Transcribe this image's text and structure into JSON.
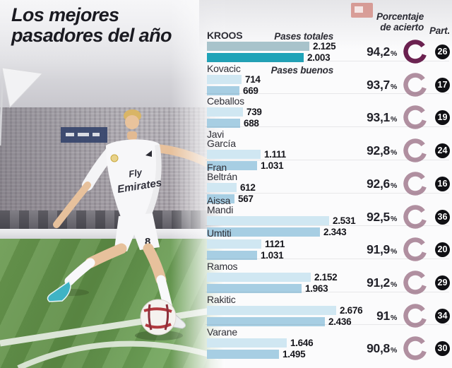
{
  "title": {
    "line1": "Los mejores",
    "line2": "pasadores del año"
  },
  "columns": {
    "pct_header_line1": "Porcentaje",
    "pct_header_line2": "de acierto",
    "part_header": "Part."
  },
  "legend": {
    "total": "Pases totales",
    "good": "Pases buenos"
  },
  "photo": {
    "sponsor_line1": "Fly",
    "sponsor_line2": "Emirates",
    "shirt_number": "8"
  },
  "colors": {
    "bar_total": "#d0e7f2",
    "bar_good": "#a7cee3",
    "bar_total_highlight": "#a8c3cb",
    "bar_good_highlight": "#1fa3b8",
    "ring": "#b08fa0",
    "ring_highlight": "#6b2150",
    "badge_bg": "#101014",
    "badge_text": "#ffffff"
  },
  "chart_data": {
    "type": "bar",
    "orientation": "horizontal",
    "title": "Los mejores pasadores del año",
    "series_labels": [
      "Pases totales",
      "Pases buenos"
    ],
    "pct_unit": "%",
    "max_value": 2676,
    "players": [
      {
        "name_lines": [
          "KROOS"
        ],
        "total_value": 2125,
        "total_label": "2.125",
        "good_value": 2003,
        "good_label": "2.003",
        "pct_value": 94.2,
        "pct_label": "94,2",
        "part": "26",
        "highlight": true
      },
      {
        "name_lines": [
          "Kovacic"
        ],
        "total_value": 714,
        "total_label": "714",
        "good_value": 669,
        "good_label": "669",
        "pct_value": 93.7,
        "pct_label": "93,7",
        "part": "17",
        "highlight": false
      },
      {
        "name_lines": [
          "Ceballos"
        ],
        "total_value": 739,
        "total_label": "739",
        "good_value": 688,
        "good_label": "688",
        "pct_value": 93.1,
        "pct_label": "93,1",
        "part": "19",
        "highlight": false
      },
      {
        "name_lines": [
          "Javi",
          "García"
        ],
        "total_value": 1111,
        "total_label": "1.111",
        "good_value": 1031,
        "good_label": "1.031",
        "pct_value": 92.8,
        "pct_label": "92,8",
        "part": "24",
        "highlight": false
      },
      {
        "name_lines": [
          "Fran",
          "Beltrán"
        ],
        "total_value": 612,
        "total_label": "612",
        "good_value": 567,
        "good_label": "567",
        "pct_value": 92.6,
        "pct_label": "92,6",
        "part": "16",
        "highlight": false
      },
      {
        "name_lines": [
          "Aissa",
          "Mandi"
        ],
        "total_value": 2531,
        "total_label": "2.531",
        "good_value": 2343,
        "good_label": "2.343",
        "pct_value": 92.5,
        "pct_label": "92,5",
        "part": "36",
        "highlight": false
      },
      {
        "name_lines": [
          "Umtiti"
        ],
        "total_value": 1121,
        "total_label": "1121",
        "good_value": 1031,
        "good_label": "1.031",
        "pct_value": 91.9,
        "pct_label": "91,9",
        "part": "20",
        "highlight": false
      },
      {
        "name_lines": [
          "Ramos"
        ],
        "total_value": 2152,
        "total_label": "2.152",
        "good_value": 1963,
        "good_label": "1.963",
        "pct_value": 91.2,
        "pct_label": "91,2",
        "part": "29",
        "highlight": false
      },
      {
        "name_lines": [
          "Rakitic"
        ],
        "total_value": 2676,
        "total_label": "2.676",
        "good_value": 2436,
        "good_label": "2.436",
        "pct_value": 91.0,
        "pct_label": "91",
        "part": "34",
        "highlight": false
      },
      {
        "name_lines": [
          "Varane"
        ],
        "total_value": 1646,
        "total_label": "1.646",
        "good_value": 1495,
        "good_label": "1.495",
        "pct_value": 90.8,
        "pct_label": "90,8",
        "part": "30",
        "highlight": false
      }
    ]
  }
}
